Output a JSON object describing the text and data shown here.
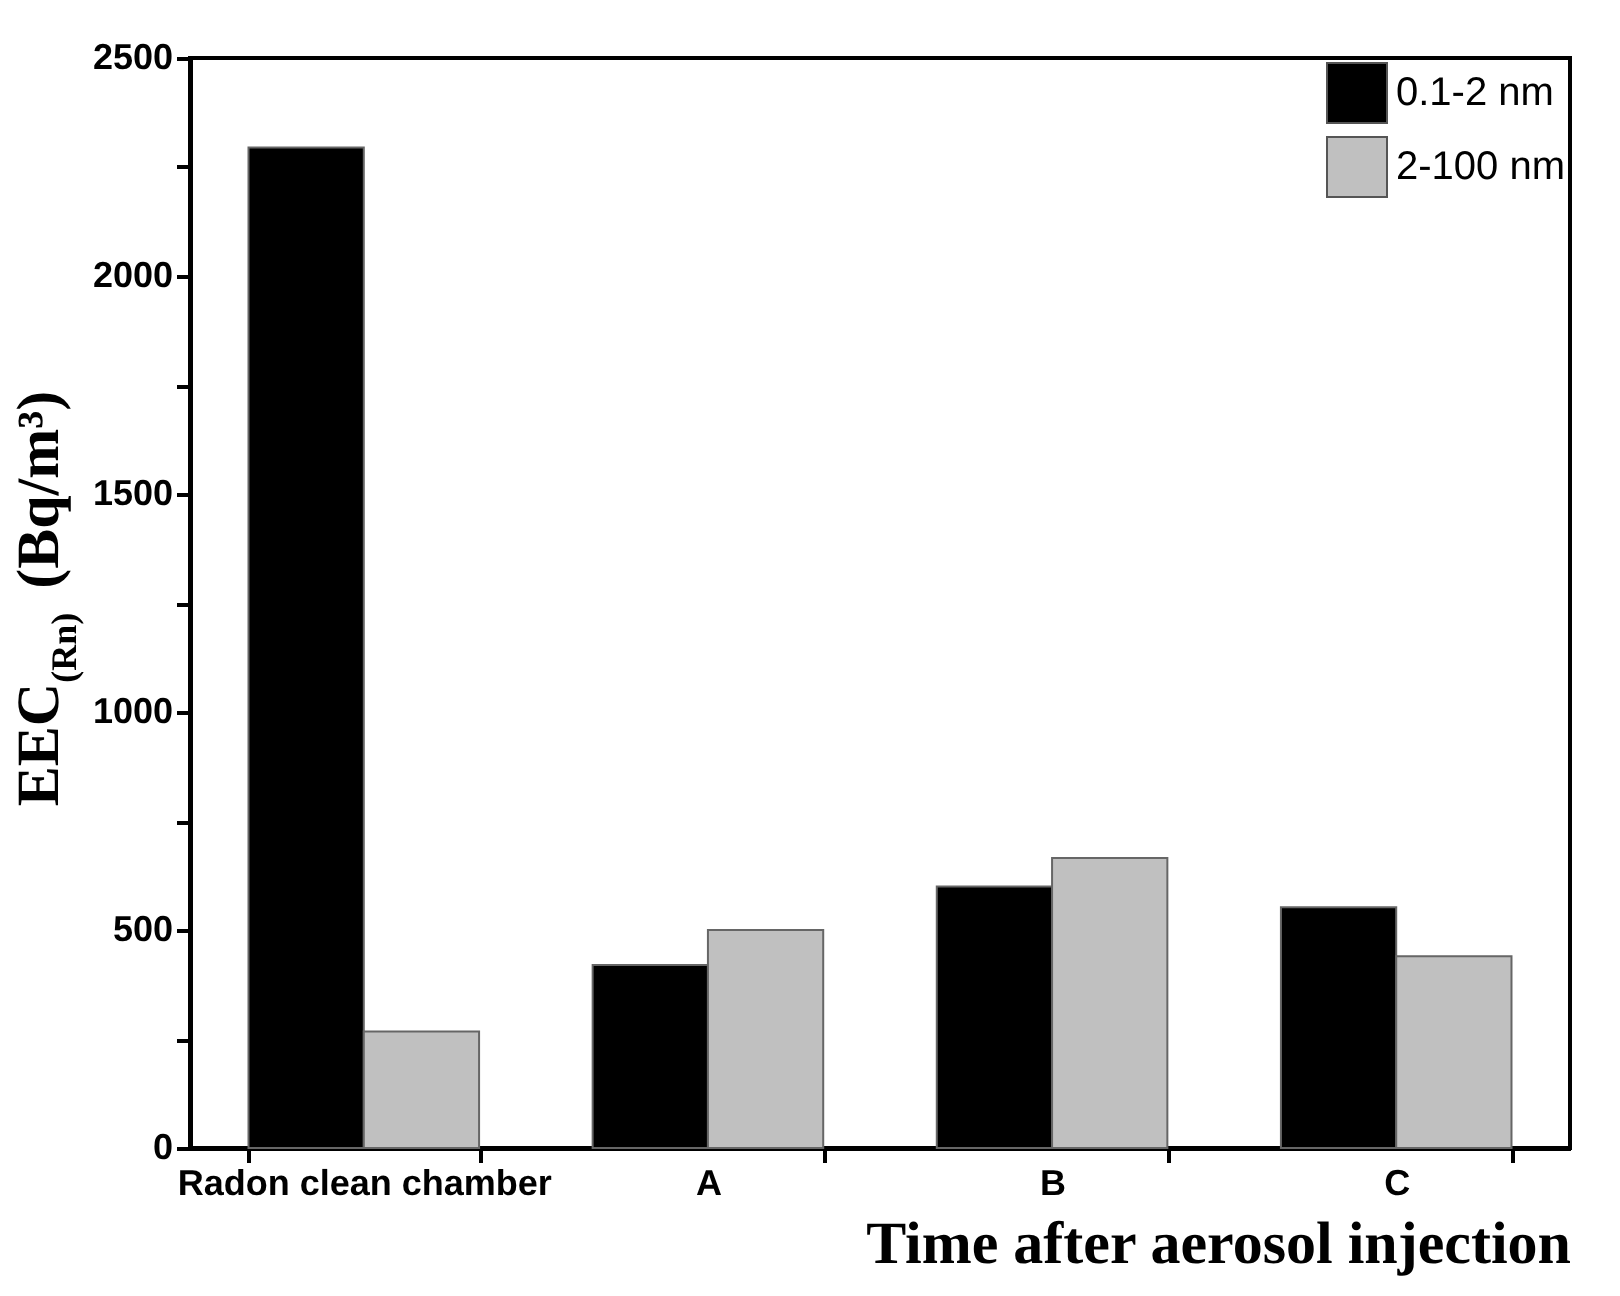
{
  "chart_data": {
    "type": "bar",
    "xlabel": "Time after aerosol injection",
    "ylabel": "EEC$_{(Rn)}$ (Bq/m³)",
    "categories": [
      "Radon clean chamber",
      "A",
      "B",
      "C"
    ],
    "series": [
      {
        "name": "0.1-2 nm",
        "color": "#000000",
        "values": [
          2295,
          420,
          600,
          552
        ]
      },
      {
        "name": "2-100 nm",
        "color": "#c0c0c0",
        "values": [
          267,
          500,
          665,
          440
        ]
      }
    ],
    "ylim": [
      0,
      2500
    ],
    "yticks": [
      0,
      {
        "value": 250,
        "label": null
      },
      500,
      {
        "value": 750,
        "label": null
      },
      1000,
      {
        "value": 1250,
        "label": null
      },
      1500,
      {
        "value": 1750,
        "label": null
      },
      2000,
      {
        "value": 2250,
        "label": null
      },
      2500
    ],
    "grid": false,
    "legend": "top right"
  }
}
